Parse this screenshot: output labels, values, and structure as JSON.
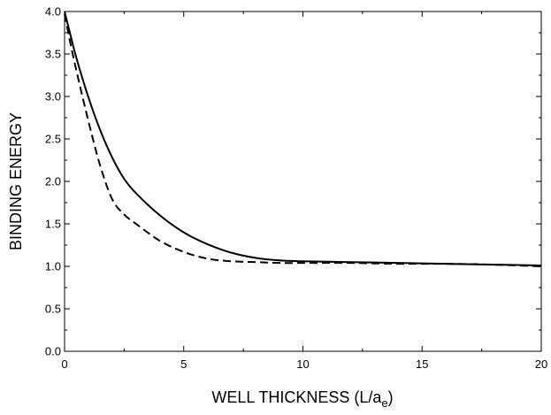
{
  "chart_data": {
    "type": "line",
    "title": "",
    "xlabel": "WELL THICKNESS (L/a",
    "xlabel_subscript": "e",
    "xlabel_suffix": ")",
    "ylabel": "BINDING ENERGY",
    "xlim": [
      0,
      20
    ],
    "ylim": [
      0.0,
      4.0
    ],
    "x_ticks": [
      "0",
      "5",
      "10",
      "15",
      "20"
    ],
    "y_ticks": [
      "0.0",
      "0.5",
      "1.0",
      "1.5",
      "2.0",
      "2.5",
      "3.0",
      "3.5",
      "4.0"
    ],
    "grid": false,
    "legend": "none",
    "series": [
      {
        "style": "solid",
        "color": "#000000",
        "x": [
          0,
          0.25,
          0.5,
          1,
          1.5,
          2,
          2.5,
          3,
          4,
          5,
          6,
          7,
          8,
          9,
          10,
          12,
          14,
          16,
          18,
          20
        ],
        "y": [
          4.0,
          3.72,
          3.45,
          2.99,
          2.6,
          2.28,
          2.03,
          1.86,
          1.6,
          1.4,
          1.26,
          1.16,
          1.1,
          1.07,
          1.06,
          1.05,
          1.04,
          1.03,
          1.02,
          1.01
        ]
      },
      {
        "style": "dashed",
        "color": "#000000",
        "x": [
          0,
          0.25,
          0.5,
          1,
          1.5,
          2,
          2.5,
          3,
          4,
          5,
          6,
          7,
          8,
          9,
          10,
          12,
          14,
          16,
          18,
          20
        ],
        "y": [
          3.97,
          3.62,
          3.3,
          2.71,
          2.18,
          1.79,
          1.61,
          1.5,
          1.3,
          1.17,
          1.09,
          1.06,
          1.05,
          1.04,
          1.04,
          1.04,
          1.03,
          1.03,
          1.02,
          1.0
        ]
      }
    ]
  }
}
